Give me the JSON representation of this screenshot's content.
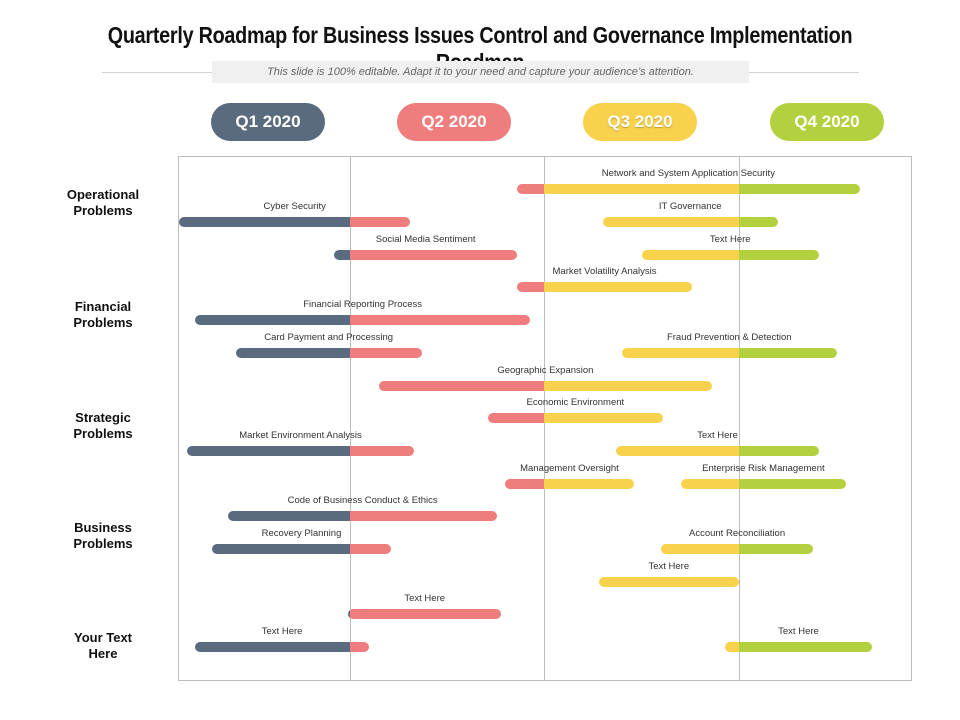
{
  "title": "Quarterly Roadmap for Business Issues Control and Governance Implementation Roadmap",
  "subtitle": "This slide is 100% editable. Adapt it to your need and capture your audience’s attention.",
  "colors": {
    "q1": "#5a6b7f",
    "q2": "#ef7d7d",
    "q3": "#f8d14d",
    "q4": "#b3d13e"
  },
  "quarters": [
    {
      "label": "Q1 2020",
      "color": "#5a6b7f",
      "textColor": "#ffffff"
    },
    {
      "label": "Q2 2020",
      "color": "#ef7d7d",
      "textColor": "#ffffff"
    },
    {
      "label": "Q3 2020",
      "color": "#f8d14d",
      "textColor": "#ffffff"
    },
    {
      "label": "Q4 2020",
      "color": "#b3d13e",
      "textColor": "#ffffff"
    }
  ],
  "categories": [
    {
      "line1": "Operational",
      "line2": "Problems"
    },
    {
      "line1": "Financial",
      "line2": "Problems"
    },
    {
      "line1": "Strategic",
      "line2": "Problems"
    },
    {
      "line1": "Business",
      "line2": "Problems"
    },
    {
      "line1": "Your Text",
      "line2": "Here"
    }
  ],
  "tasks": [
    {
      "label": "Network and System Application Security",
      "start": 1.86,
      "end": 3.62
    },
    {
      "label": "Cyber Security",
      "start": 0.12,
      "end": 1.31
    },
    {
      "label": "IT Governance",
      "start": 2.3,
      "end": 3.2
    },
    {
      "label": "Social Media Sentiment",
      "start": 0.92,
      "end": 1.86
    },
    {
      "label": "Text Here",
      "start": 2.5,
      "end": 3.41
    },
    {
      "label": "Market Volatility Analysis",
      "start": 1.86,
      "end": 2.76
    },
    {
      "label": "Financial Reporting Process",
      "start": 0.2,
      "end": 1.93
    },
    {
      "label": "Card Payment and Processing",
      "start": 0.41,
      "end": 1.37
    },
    {
      "label": "Fraud Prevention & Detection",
      "start": 2.4,
      "end": 3.5
    },
    {
      "label": "Geographic Expansion",
      "start": 1.15,
      "end": 2.86
    },
    {
      "label": "Economic Environment",
      "start": 1.71,
      "end": 2.61
    },
    {
      "label": "Market Environment Analysis",
      "start": 0.16,
      "end": 1.33
    },
    {
      "label": "Text Here",
      "start": 2.37,
      "end": 3.41
    },
    {
      "label": "Management Oversight",
      "start": 1.8,
      "end": 2.46
    },
    {
      "label": "Enterprise Risk Management",
      "start": 2.7,
      "end": 3.55
    },
    {
      "label": "Code of Business Conduct & Ethics",
      "start": 0.37,
      "end": 1.76
    },
    {
      "label": "Recovery Planning",
      "start": 0.29,
      "end": 1.21
    },
    {
      "label": "Account Reconciliation",
      "start": 2.6,
      "end": 3.38
    },
    {
      "label": "Text Here",
      "start": 2.28,
      "end": 3.0
    },
    {
      "label": "Text Here",
      "start": 0.99,
      "end": 1.78
    },
    {
      "label": "Text Here",
      "start": 0.2,
      "end": 1.1
    },
    {
      "label": "Text Here",
      "start": 2.93,
      "end": 3.68
    }
  ]
}
